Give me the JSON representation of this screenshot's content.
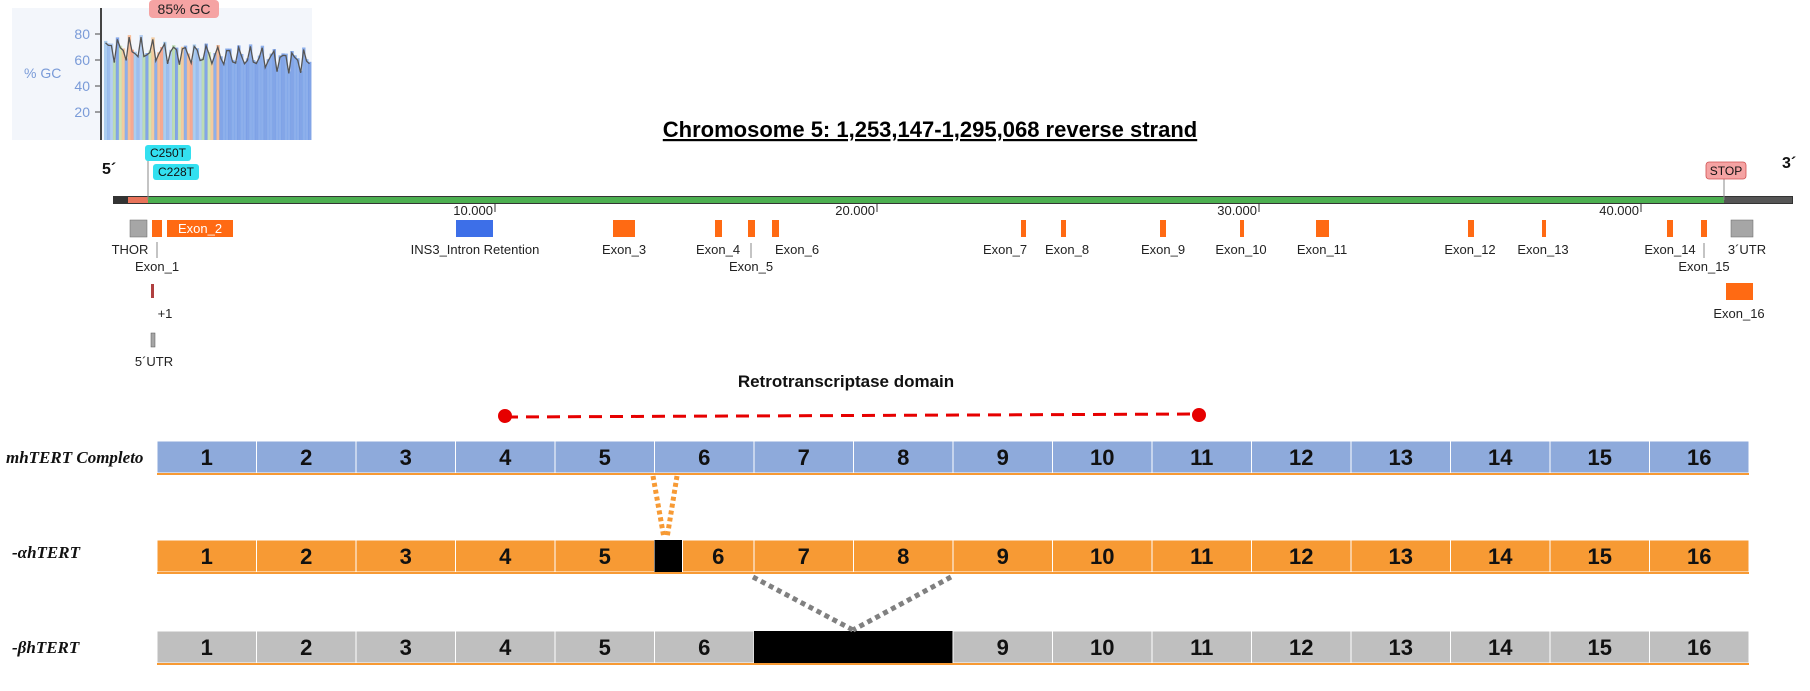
{
  "gc_panel": {
    "badge": "85% GC",
    "axis_label": "% GC",
    "ticks": [
      "80",
      "60",
      "40",
      "20"
    ]
  },
  "chromosome": {
    "title": "Chromosome 5: 1,253,147-1,295,068 reverse strand",
    "end_left": "5´",
    "end_right": "3´",
    "markers": {
      "c250t": "C250T",
      "c228t": "C228T",
      "stop": "STOP"
    },
    "scale_ticks": [
      "10.000",
      "20.000",
      "30.000",
      "40.000"
    ]
  },
  "features": {
    "thor": "THOR",
    "exon_2": "Exon_2",
    "exon_1": "Exon_1",
    "plus1": "+1",
    "utr5": "5´UTR",
    "ins3": "INS3_Intron Retention",
    "exon_3": "Exon_3",
    "exon_4": "Exon_4",
    "exon_5": "Exon_5",
    "exon_6": "Exon_6",
    "exon_7": "Exon_7",
    "exon_8": "Exon_8",
    "exon_9": "Exon_9",
    "exon_10": "Exon_10",
    "exon_11": "Exon_11",
    "exon_12": "Exon_12",
    "exon_13": "Exon_13",
    "exon_14": "Exon_14",
    "exon_15": "Exon_15",
    "utr3": "3´UTR",
    "exon_16": "Exon_16"
  },
  "domain": {
    "title": "Retrotranscriptase domain"
  },
  "transcripts": {
    "full": {
      "label": "mhTERT Completo",
      "segments": [
        "1",
        "2",
        "3",
        "4",
        "5",
        "6",
        "7",
        "8",
        "9",
        "10",
        "11",
        "12",
        "13",
        "14",
        "15",
        "16"
      ]
    },
    "alpha": {
      "label": "-αhTERT",
      "segments": [
        "1",
        "2",
        "3",
        "4",
        "5",
        "6",
        "7",
        "8",
        "9",
        "10",
        "11",
        "12",
        "13",
        "14",
        "15",
        "16"
      ]
    },
    "beta": {
      "label": "-βhTERT",
      "segments": [
        "1",
        "2",
        "3",
        "4",
        "5",
        "6",
        "9",
        "10",
        "11",
        "12",
        "13",
        "14",
        "15",
        "16"
      ]
    }
  },
  "colors": {
    "full_fill": "#8eaadb",
    "alpha_fill": "#f79a34",
    "beta_fill": "#bfbfbf",
    "exon_orange": "#ff6a13",
    "exon_blue": "#3d6fe8",
    "utr_gray": "#a6a6a6",
    "strand_green": "#4caf50",
    "dash_red": "#e60000",
    "cyan_badge": "#33e0f0",
    "pink_badge": "#f5a3a3"
  }
}
